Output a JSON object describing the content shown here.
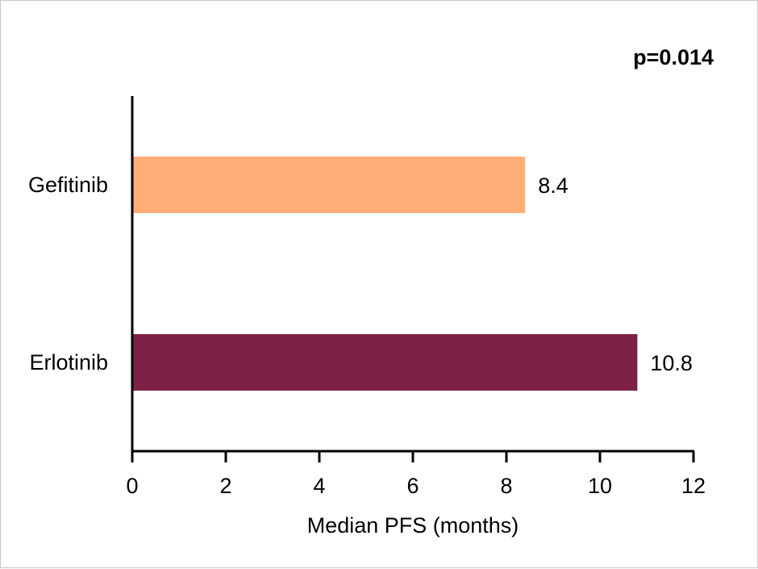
{
  "chart_data": {
    "type": "bar",
    "orientation": "horizontal",
    "annotation": "p=0.014",
    "xlabel": "Median PFS (months)",
    "ylabel": "",
    "xlim": [
      0,
      12
    ],
    "xticks": [
      0,
      2,
      4,
      6,
      8,
      10,
      12
    ],
    "grid": false,
    "categories": [
      "Gefitinib",
      "Erlotinib"
    ],
    "values": [
      8.4,
      10.8
    ],
    "value_labels": [
      "8.4",
      "10.8"
    ],
    "colors": [
      "#ffae78",
      "#7d2246"
    ]
  }
}
